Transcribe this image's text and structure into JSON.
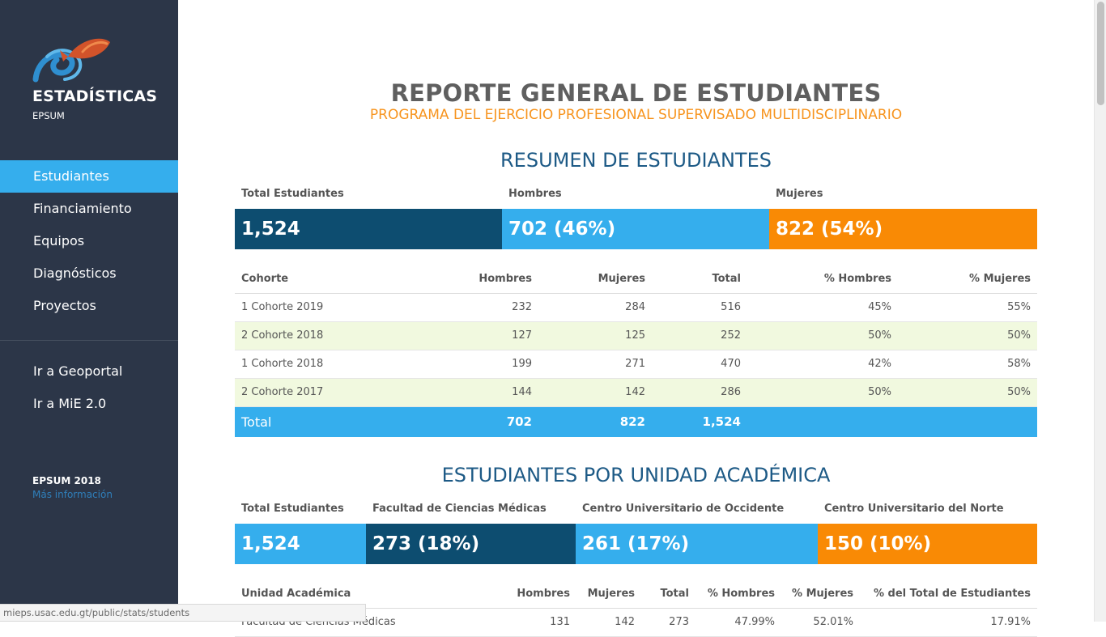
{
  "sidebar": {
    "brand_title": "ESTADÍSTICAS",
    "brand_sub": "EPSUM",
    "nav": [
      {
        "label": "Estudiantes",
        "active": true
      },
      {
        "label": "Financiamiento"
      },
      {
        "label": "Equipos"
      },
      {
        "label": "Diagnósticos"
      },
      {
        "label": "Proyectos"
      }
    ],
    "nav2": [
      {
        "label": "Ir a Geoportal"
      },
      {
        "label": "Ir a MiE 2.0"
      }
    ],
    "footer_title": "EPSUM 2018",
    "footer_link": "Más información"
  },
  "status_url": "mieps.usac.edu.gt/public/stats/students",
  "header": {
    "title": "REPORTE GENERAL DE ESTUDIANTES",
    "subtitle": "PROGRAMA DEL EJERCICIO PROFESIONAL SUPERVISADO MULTIDISCIPLINARIO"
  },
  "resumen": {
    "title": "RESUMEN DE ESTUDIANTES",
    "cards": [
      {
        "label": "Total Estudiantes",
        "value": "1,524",
        "color": "#0d4d70"
      },
      {
        "label": "Hombres",
        "value": "702 (46%)",
        "color": "#35aeed"
      },
      {
        "label": "Mujeres",
        "value": "822 (54%)",
        "color": "#f98a05"
      }
    ],
    "columns": [
      "Cohorte",
      "Hombres",
      "Mujeres",
      "Total",
      "% Hombres",
      "% Mujeres"
    ],
    "rows": [
      [
        "1 Cohorte 2019",
        "232",
        "284",
        "516",
        "45%",
        "55%"
      ],
      [
        "2 Cohorte 2018",
        "127",
        "125",
        "252",
        "50%",
        "50%"
      ],
      [
        "1 Cohorte 2018",
        "199",
        "271",
        "470",
        "42%",
        "58%"
      ],
      [
        "2 Cohorte 2017",
        "144",
        "142",
        "286",
        "50%",
        "50%"
      ]
    ],
    "total": [
      "Total",
      "702",
      "822",
      "1,524",
      "",
      ""
    ]
  },
  "unidad": {
    "title": "ESTUDIANTES POR UNIDAD ACADÉMICA",
    "cards": [
      {
        "label": "Total Estudiantes",
        "value": "1,524",
        "color": "#35aeed"
      },
      {
        "label": "Facultad de Ciencias Médicas",
        "value": "273 (18%)",
        "color": "#0d4d70"
      },
      {
        "label": "Centro Universitario de Occidente",
        "value": "261 (17%)",
        "color": "#35aeed"
      },
      {
        "label": "Centro Universitario del Norte",
        "value": "150 (10%)",
        "color": "#f98a05"
      }
    ],
    "columns": [
      "Unidad Académica",
      "Hombres",
      "Mujeres",
      "Total",
      "% Hombres",
      "% Mujeres",
      "% del Total de Estudiantes"
    ],
    "rows": [
      [
        "Facultad de Ciencias Médicas",
        "131",
        "142",
        "273",
        "47.99%",
        "52.01%",
        "17.91%"
      ]
    ]
  }
}
